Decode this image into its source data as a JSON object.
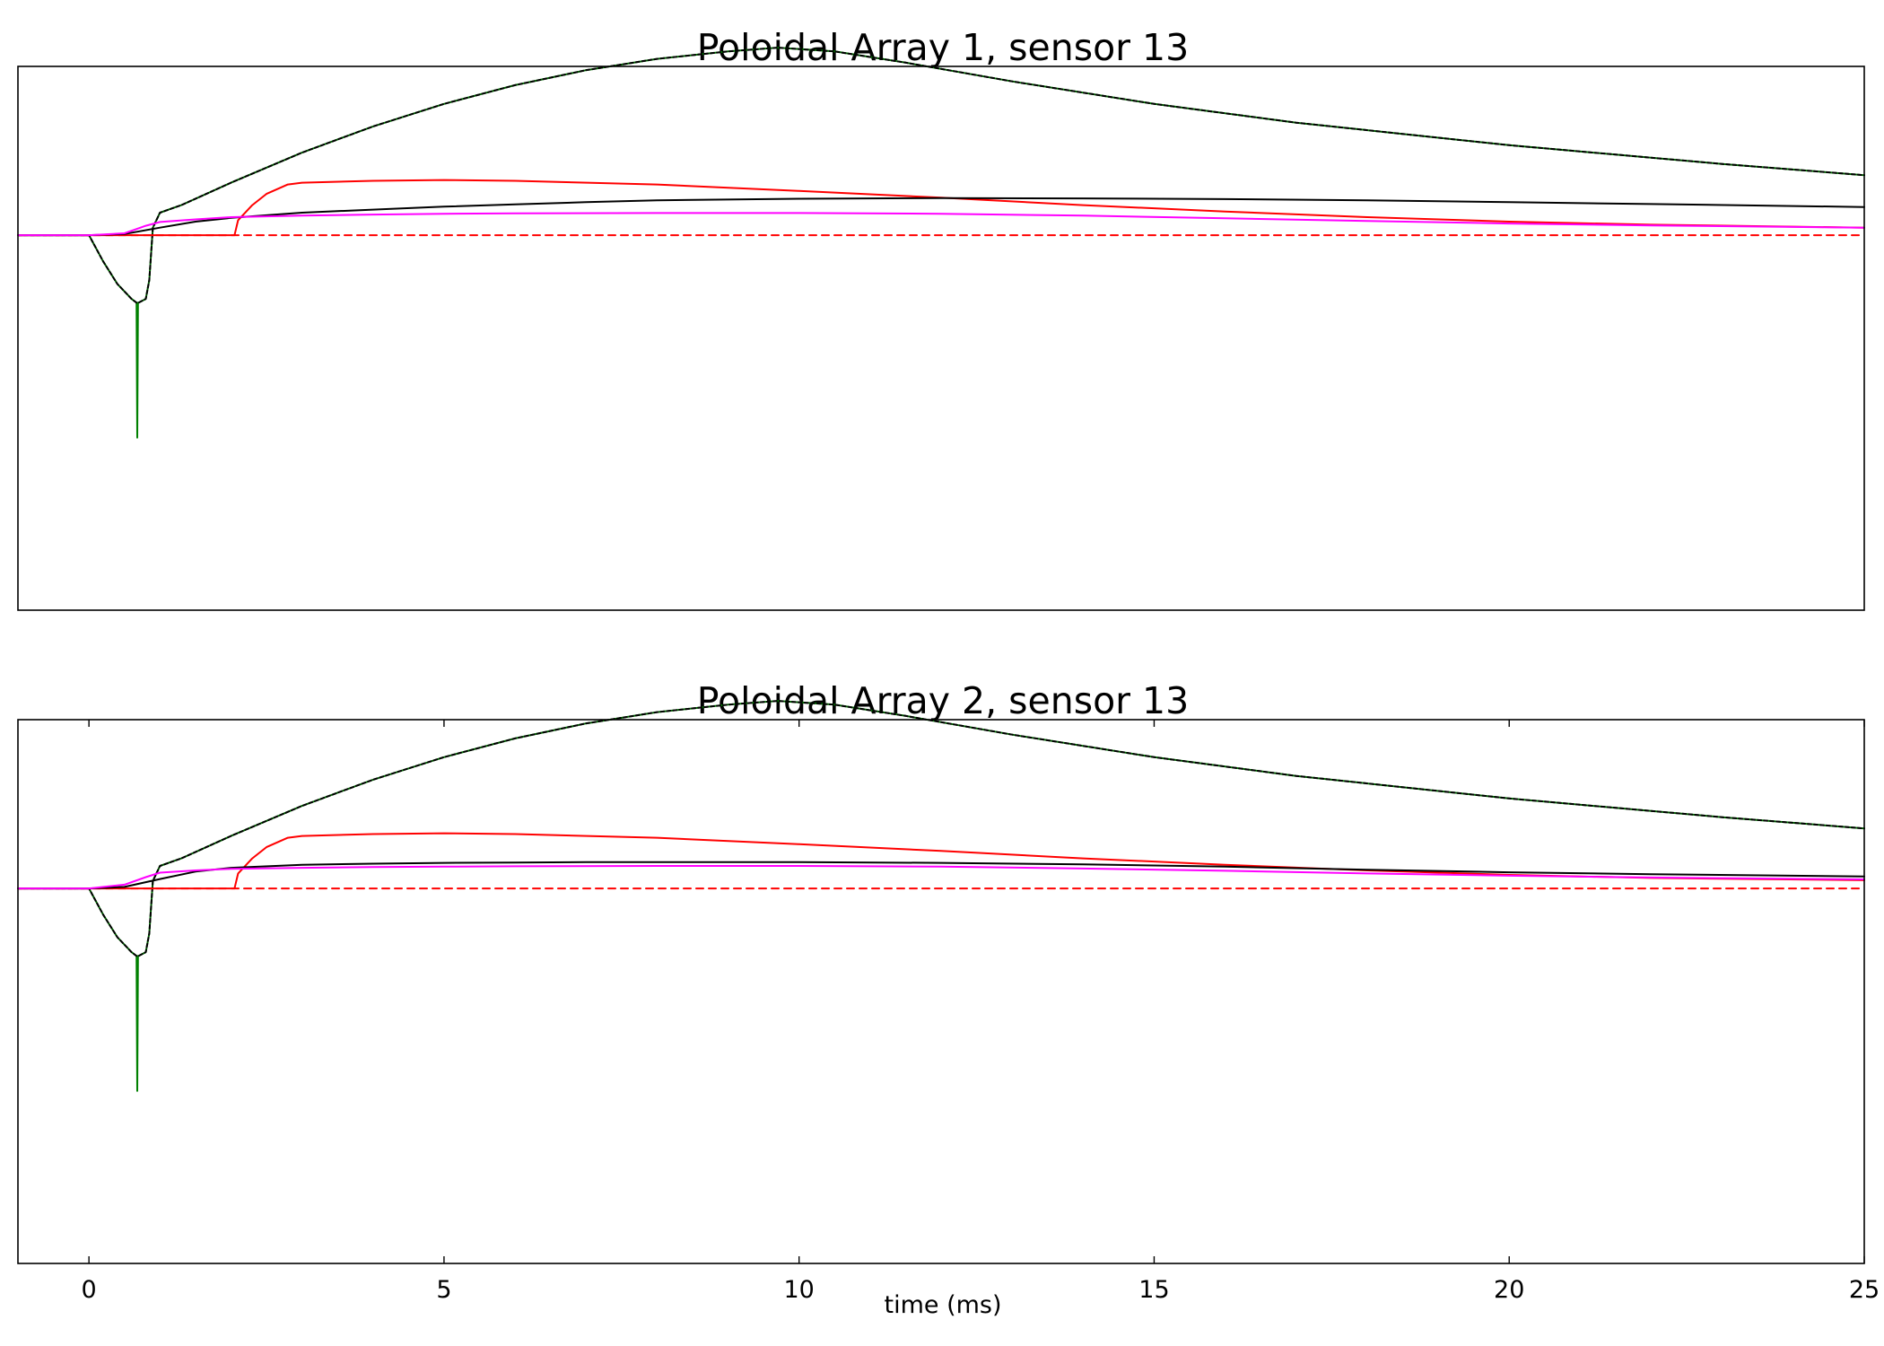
{
  "figure": {
    "xlabel": "time (ms)"
  },
  "chart_data": [
    {
      "type": "line",
      "title": "Poloidal Array 1, sensor 13",
      "xlabel": "",
      "ylabel": "",
      "xlim": [
        -1,
        25
      ],
      "ylim": [
        -1.0,
        0.45
      ],
      "x_ticks_shown": false,
      "grid": false,
      "series": [
        {
          "color": "#008000",
          "dash": "solid",
          "x": [
            -1,
            0,
            0.2,
            0.4,
            0.6,
            0.67,
            0.68,
            0.69,
            0.7,
            0.8,
            0.85,
            0.9,
            1.0,
            1.3,
            2,
            3,
            4,
            5,
            6,
            7,
            8,
            9,
            9.7,
            10.5,
            11.5,
            13,
            15,
            17,
            20,
            23,
            25
          ],
          "y": [
            0,
            0,
            -0.07,
            -0.13,
            -0.17,
            -0.18,
            -0.54,
            -0.18,
            -0.18,
            -0.17,
            -0.12,
            0.02,
            0.06,
            0.08,
            0.14,
            0.22,
            0.29,
            0.35,
            0.4,
            0.44,
            0.47,
            0.49,
            0.5,
            0.49,
            0.46,
            0.41,
            0.35,
            0.3,
            0.24,
            0.19,
            0.16
          ]
        },
        {
          "color": "#000000",
          "dash": "4,3",
          "x": [
            -1,
            0,
            0.2,
            0.4,
            0.6,
            0.67,
            0.68,
            0.69,
            0.7,
            0.8,
            0.85,
            0.9,
            1.0,
            1.3,
            2,
            3,
            4,
            5,
            6,
            7,
            8,
            9,
            9.7,
            10.5,
            11.5,
            13,
            15,
            17,
            20,
            23,
            25
          ],
          "y": [
            0,
            0,
            -0.07,
            -0.13,
            -0.17,
            -0.18,
            -0.18,
            -0.18,
            -0.18,
            -0.17,
            -0.12,
            0.02,
            0.06,
            0.08,
            0.14,
            0.22,
            0.29,
            0.35,
            0.4,
            0.44,
            0.47,
            0.49,
            0.5,
            0.49,
            0.46,
            0.41,
            0.35,
            0.3,
            0.24,
            0.19,
            0.16
          ]
        },
        {
          "color": "#ff0000",
          "dash": "solid",
          "x": [
            -1,
            0,
            2.05,
            2.1,
            2.3,
            2.5,
            2.8,
            3,
            4,
            5,
            6,
            8,
            10,
            12,
            14,
            16,
            18,
            20,
            22,
            25
          ],
          "y": [
            0,
            0,
            0,
            0.04,
            0.08,
            0.11,
            0.135,
            0.14,
            0.145,
            0.147,
            0.145,
            0.135,
            0.118,
            0.1,
            0.08,
            0.063,
            0.048,
            0.036,
            0.028,
            0.02
          ]
        },
        {
          "color": "#ff0000",
          "dash": "8,6",
          "x": [
            -1,
            25
          ],
          "y": [
            0,
            0
          ]
        },
        {
          "color": "#000000",
          "dash": "solid",
          "x": [
            -1,
            0,
            0.5,
            1,
            1.5,
            2,
            3,
            4,
            5,
            6,
            7,
            8,
            10,
            12,
            14,
            16,
            18,
            20,
            22,
            25
          ],
          "y": [
            0,
            0,
            0.003,
            0.02,
            0.036,
            0.046,
            0.06,
            0.068,
            0.076,
            0.082,
            0.088,
            0.093,
            0.097,
            0.099,
            0.098,
            0.096,
            0.093,
            0.088,
            0.083,
            0.075
          ]
        },
        {
          "color": "#ff00ff",
          "dash": "solid",
          "x": [
            -1,
            0,
            0.5,
            0.8,
            1,
            1.5,
            2,
            3,
            4,
            5,
            6,
            8,
            10,
            12,
            14,
            16,
            18,
            20,
            22,
            25
          ],
          "y": [
            0,
            0,
            0.005,
            0.025,
            0.035,
            0.042,
            0.048,
            0.052,
            0.055,
            0.057,
            0.058,
            0.059,
            0.059,
            0.057,
            0.052,
            0.045,
            0.038,
            0.031,
            0.026,
            0.02
          ]
        }
      ]
    },
    {
      "type": "line",
      "title": "Poloidal Array 2, sensor 13",
      "xlabel": "time (ms)",
      "ylabel": "",
      "xlim": [
        -1,
        25
      ],
      "ylim": [
        -1.0,
        0.45
      ],
      "x_ticks_shown": true,
      "x_ticks": [
        0,
        5,
        10,
        15,
        20,
        25
      ],
      "x_tick_labels": [
        "0",
        "5",
        "10",
        "15",
        "20",
        "25"
      ],
      "grid": false,
      "series": [
        {
          "color": "#008000",
          "dash": "solid",
          "x": [
            -1,
            0,
            0.2,
            0.4,
            0.6,
            0.67,
            0.68,
            0.69,
            0.7,
            0.8,
            0.85,
            0.9,
            1.0,
            1.3,
            2,
            3,
            4,
            5,
            6,
            7,
            8,
            9,
            9.7,
            10.5,
            11.5,
            13,
            15,
            17,
            20,
            23,
            25
          ],
          "y": [
            0,
            0,
            -0.07,
            -0.13,
            -0.17,
            -0.18,
            -0.54,
            -0.18,
            -0.18,
            -0.17,
            -0.12,
            0.02,
            0.06,
            0.08,
            0.14,
            0.22,
            0.29,
            0.35,
            0.4,
            0.44,
            0.47,
            0.49,
            0.5,
            0.49,
            0.46,
            0.41,
            0.35,
            0.3,
            0.24,
            0.19,
            0.16
          ]
        },
        {
          "color": "#000000",
          "dash": "4,3",
          "x": [
            -1,
            0,
            0.2,
            0.4,
            0.6,
            0.67,
            0.68,
            0.69,
            0.7,
            0.8,
            0.85,
            0.9,
            1.0,
            1.3,
            2,
            3,
            4,
            5,
            6,
            7,
            8,
            9,
            9.7,
            10.5,
            11.5,
            13,
            15,
            17,
            20,
            23,
            25
          ],
          "y": [
            0,
            0,
            -0.07,
            -0.13,
            -0.17,
            -0.18,
            -0.18,
            -0.18,
            -0.18,
            -0.17,
            -0.12,
            0.02,
            0.06,
            0.08,
            0.14,
            0.22,
            0.29,
            0.35,
            0.4,
            0.44,
            0.47,
            0.49,
            0.5,
            0.49,
            0.46,
            0.41,
            0.35,
            0.3,
            0.24,
            0.19,
            0.16
          ]
        },
        {
          "color": "#ff0000",
          "dash": "solid",
          "x": [
            -1,
            0,
            2.05,
            2.1,
            2.3,
            2.5,
            2.8,
            3,
            4,
            5,
            6,
            8,
            10,
            12,
            14,
            16,
            18,
            20,
            22,
            25
          ],
          "y": [
            0,
            0,
            0,
            0.04,
            0.08,
            0.11,
            0.135,
            0.14,
            0.145,
            0.147,
            0.145,
            0.135,
            0.118,
            0.1,
            0.08,
            0.063,
            0.048,
            0.036,
            0.028,
            0.022
          ]
        },
        {
          "color": "#ff0000",
          "dash": "8,6",
          "x": [
            -1,
            25
          ],
          "y": [
            0,
            0
          ]
        },
        {
          "color": "#000000",
          "dash": "solid",
          "x": [
            -1,
            0,
            0.5,
            1,
            1.5,
            2,
            3,
            4,
            5,
            6,
            7,
            8,
            10,
            12,
            14,
            16,
            18,
            20,
            22,
            25
          ],
          "y": [
            0,
            0,
            0.004,
            0.025,
            0.045,
            0.055,
            0.063,
            0.066,
            0.068,
            0.069,
            0.07,
            0.07,
            0.07,
            0.068,
            0.064,
            0.058,
            0.05,
            0.043,
            0.038,
            0.032
          ]
        },
        {
          "color": "#ff00ff",
          "dash": "solid",
          "x": [
            -1,
            0,
            0.5,
            0.8,
            1,
            1.5,
            2,
            3,
            4,
            5,
            6,
            8,
            10,
            12,
            14,
            16,
            18,
            20,
            22,
            25
          ],
          "y": [
            0,
            0,
            0.01,
            0.03,
            0.042,
            0.048,
            0.052,
            0.055,
            0.057,
            0.058,
            0.059,
            0.06,
            0.06,
            0.058,
            0.053,
            0.047,
            0.04,
            0.034,
            0.029,
            0.024
          ]
        }
      ]
    }
  ]
}
